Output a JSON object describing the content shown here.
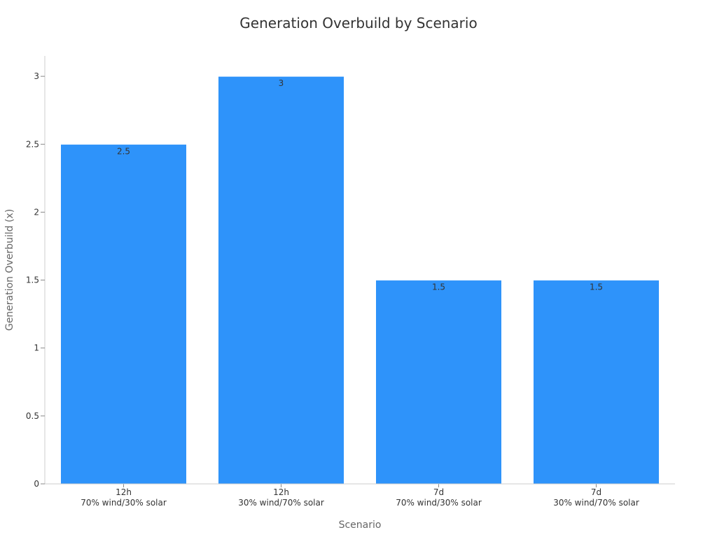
{
  "chart_data": {
    "type": "bar",
    "title": "Generation Overbuild by Scenario",
    "xlabel": "Scenario",
    "ylabel": "Generation Overbuild (x)",
    "categories": [
      [
        "12h",
        "70% wind/30% solar"
      ],
      [
        "12h",
        "30% wind/70% solar"
      ],
      [
        "7d",
        "70% wind/30% solar"
      ],
      [
        "7d",
        "30% wind/70% solar"
      ]
    ],
    "values": [
      2.5,
      3,
      1.5,
      1.5
    ],
    "data_labels": [
      "2.5",
      "3",
      "1.5",
      "1.5"
    ],
    "yticks": [
      0,
      0.5,
      1,
      1.5,
      2,
      2.5,
      3
    ],
    "ytick_labels": [
      "0",
      "0.5",
      "1",
      "1.5",
      "2",
      "2.5",
      "3"
    ],
    "ylim": [
      0,
      3.15
    ],
    "grid": false,
    "colors": {
      "bar": "#2e93fa",
      "bar_border": "#ffffff"
    }
  }
}
